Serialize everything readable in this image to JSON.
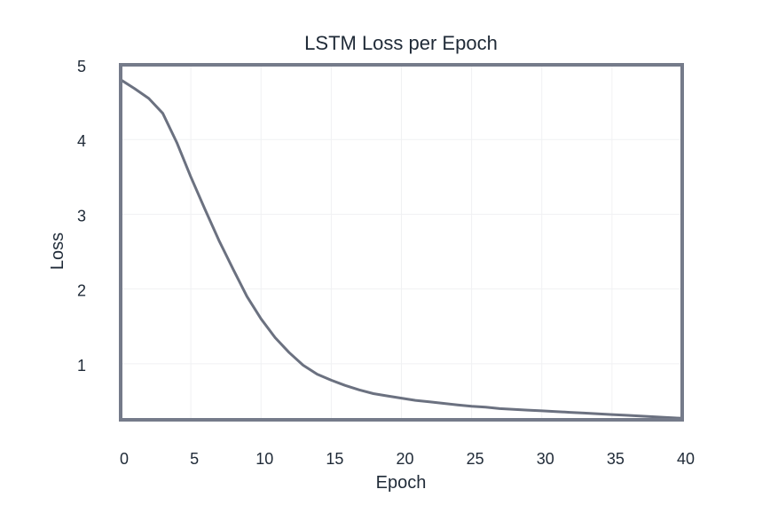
{
  "chart_data": {
    "type": "line",
    "title": "LSTM Loss per Epoch",
    "xlabel": "Epoch",
    "ylabel": "Loss",
    "xlim": [
      0,
      40
    ],
    "ylim": [
      0.25,
      5
    ],
    "x_ticks": [
      "0",
      "5",
      "10",
      "15",
      "20",
      "25",
      "30",
      "35",
      "40"
    ],
    "y_ticks": [
      "1",
      "2",
      "3",
      "4",
      "5"
    ],
    "grid": true,
    "series": [
      {
        "color": "#6b7180",
        "x": [
          0,
          1,
          2,
          3,
          4,
          5,
          6,
          7,
          8,
          9,
          10,
          11,
          12,
          13,
          14,
          15,
          16,
          17,
          18,
          19,
          20,
          21,
          22,
          23,
          24,
          25,
          26,
          27,
          28,
          29,
          30,
          31,
          32,
          33,
          34,
          35,
          36,
          37,
          38,
          39,
          40
        ],
        "y": [
          4.8,
          4.68,
          4.55,
          4.35,
          3.96,
          3.5,
          3.07,
          2.65,
          2.27,
          1.9,
          1.6,
          1.35,
          1.15,
          0.98,
          0.86,
          0.78,
          0.71,
          0.65,
          0.6,
          0.57,
          0.54,
          0.51,
          0.49,
          0.47,
          0.45,
          0.43,
          0.42,
          0.4,
          0.39,
          0.38,
          0.37,
          0.36,
          0.35,
          0.34,
          0.33,
          0.32,
          0.31,
          0.3,
          0.29,
          0.28,
          0.27
        ]
      }
    ]
  }
}
